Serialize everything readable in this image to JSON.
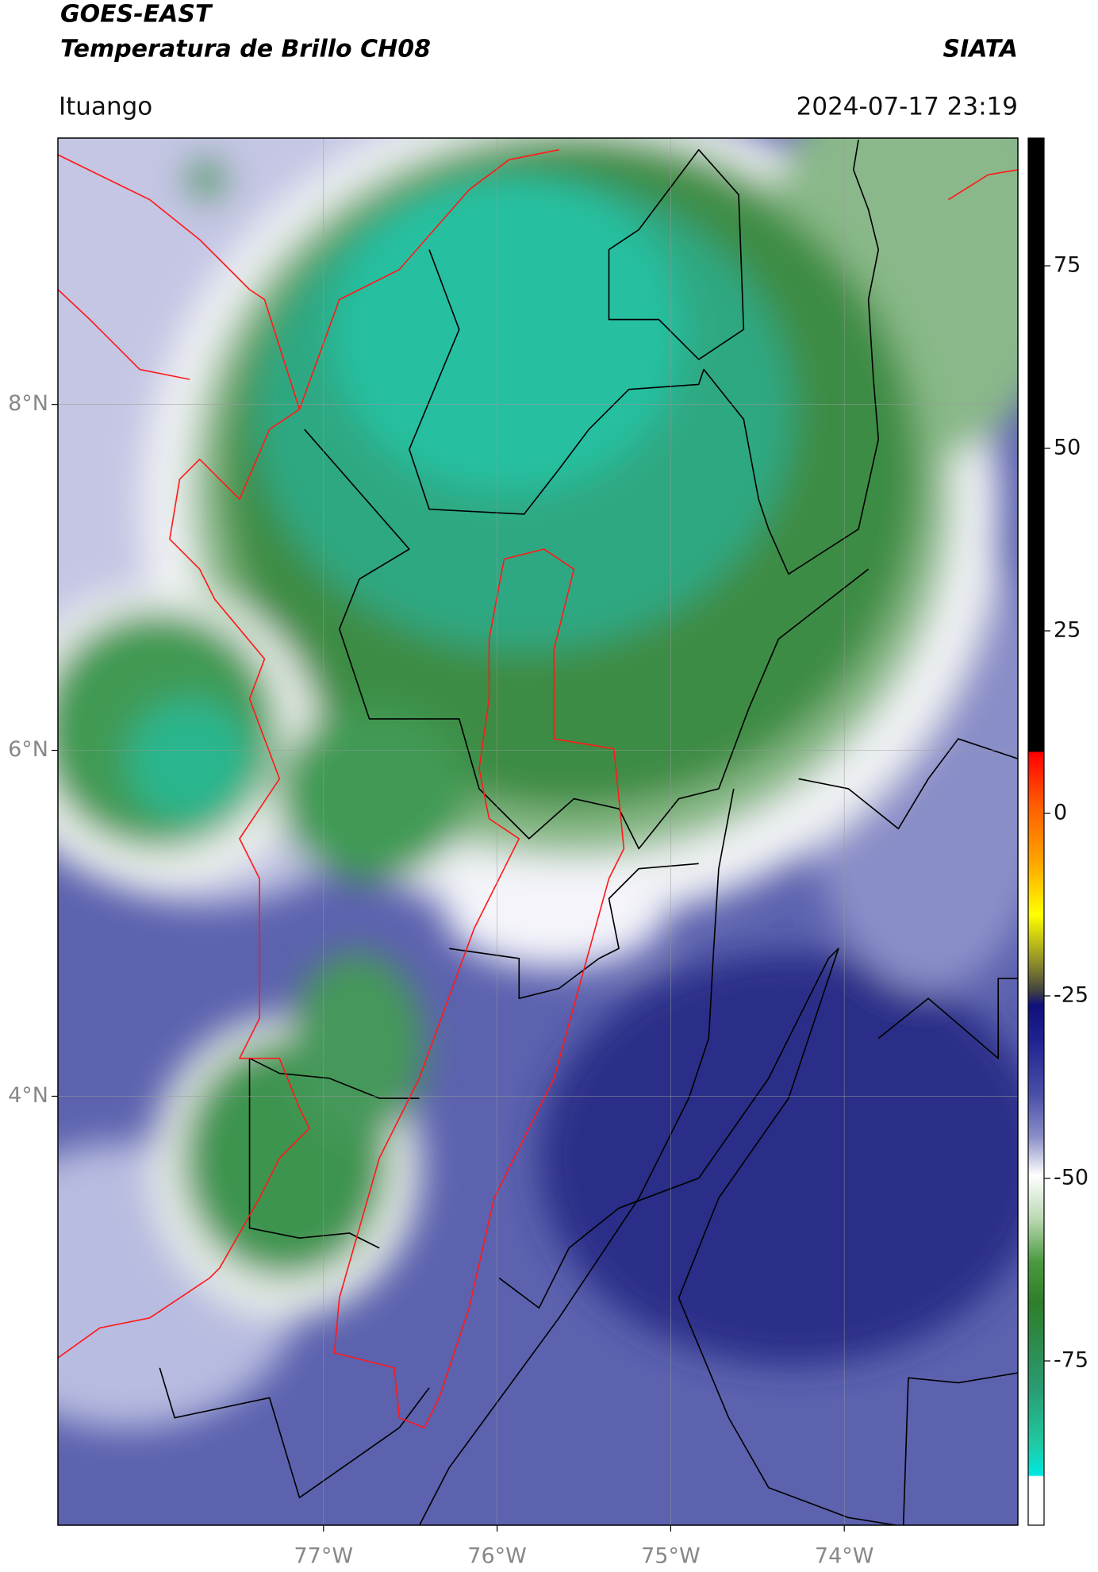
{
  "header": {
    "title": "GOES-EAST",
    "subtitle": "Temperatura de Brillo CH08",
    "source": "SIATA",
    "location": "Ituango",
    "datetime": "2024-07-17 23:19"
  },
  "map": {
    "xlim": [
      -78.53,
      -73.0
    ],
    "ylim": [
      1.52,
      9.54
    ],
    "xticks": [
      {
        "value": -77,
        "label": "77°W"
      },
      {
        "value": -76,
        "label": "76°W"
      },
      {
        "value": -75,
        "label": "75°W"
      },
      {
        "value": -74,
        "label": "74°W"
      }
    ],
    "yticks": [
      {
        "value": 4,
        "label": "4°N"
      },
      {
        "value": 6,
        "label": "6°N"
      },
      {
        "value": 8,
        "label": "8°N"
      }
    ]
  },
  "colorbar": {
    "lim": [
      -97.5,
      92.5
    ],
    "ticks": [
      -75,
      -50,
      -25,
      0,
      25,
      50,
      75
    ]
  }
}
